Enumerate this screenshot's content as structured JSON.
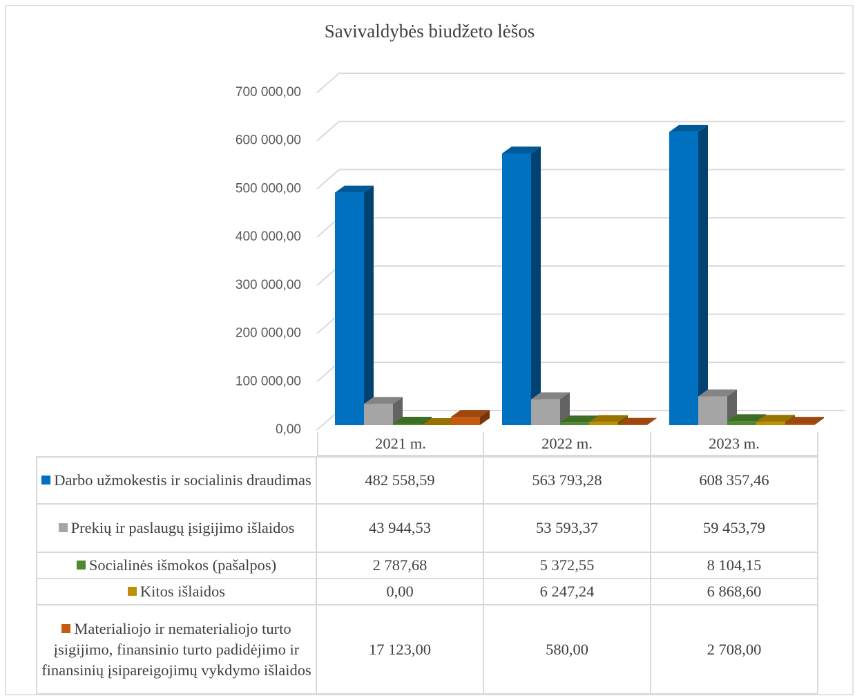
{
  "chart_data": {
    "type": "bar",
    "title": "Savivaldybės biudžeto lėšos",
    "categories": [
      "2021 m.",
      "2022 m.",
      "2023 m."
    ],
    "series": [
      {
        "name": "Darbo užmokestis ir socialinis draudimas",
        "color": "#0070c0",
        "values": [
          482558.59,
          563793.28,
          608357.46
        ],
        "value_labels": [
          "482 558,59",
          "563 793,28",
          "608 357,46"
        ]
      },
      {
        "name": "Prekių ir paslaugų įsigijimo išlaidos",
        "color": "#a5a5a5",
        "values": [
          43944.53,
          53593.37,
          59453.79
        ],
        "value_labels": [
          "43 944,53",
          "53 593,37",
          "59 453,79"
        ]
      },
      {
        "name": "Socialinės išmokos (pašalpos)",
        "color": "#4e8a2e",
        "values": [
          2787.68,
          5372.55,
          8104.15
        ],
        "value_labels": [
          "2 787,68",
          "5 372,55",
          "8 104,15"
        ]
      },
      {
        "name": "Kitos išlaidos",
        "color": "#bf9000",
        "values": [
          0,
          6247.24,
          6868.6
        ],
        "value_labels": [
          "0,00",
          "6 247,24",
          "6 868,60"
        ]
      },
      {
        "name": "Materialiojo ir nematerialiojo turto įsigijimo, finansinio turto padidėjimo ir finansinių įsipareigojimų vykdymo išlaidos",
        "color": "#c55a11",
        "values": [
          17123,
          580,
          2708
        ],
        "value_labels": [
          "17 123,00",
          "580,00",
          "2 708,00"
        ]
      }
    ],
    "ylim": [
      0,
      700000
    ],
    "yticks": [
      {
        "value": 0,
        "label": "0,00"
      },
      {
        "value": 100000,
        "label": "100 000,00"
      },
      {
        "value": 200000,
        "label": "200 000,00"
      },
      {
        "value": 300000,
        "label": "300 000,00"
      },
      {
        "value": 400000,
        "label": "400 000,00"
      },
      {
        "value": 500000,
        "label": "500 000,00"
      },
      {
        "value": 600000,
        "label": "600 000,00"
      },
      {
        "value": 700000,
        "label": "700 000,00"
      }
    ],
    "grid": true
  }
}
